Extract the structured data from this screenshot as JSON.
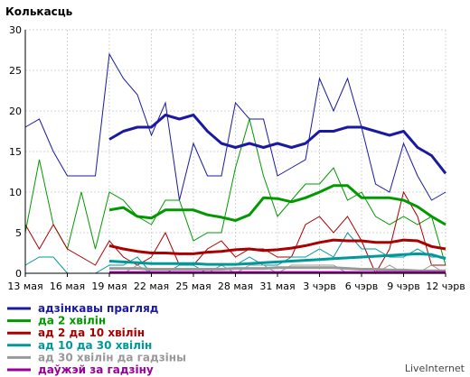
{
  "chart_data": {
    "type": "line",
    "title": "Колькасць",
    "watermark": "LiveInternet",
    "ylim": [
      0,
      30
    ],
    "yticks": [
      0,
      5,
      10,
      15,
      20,
      25,
      30
    ],
    "grid": true,
    "x_count": 31,
    "xtick_labels": [
      {
        "i": 0,
        "label": "13 мая"
      },
      {
        "i": 3,
        "label": "16 мая"
      },
      {
        "i": 6,
        "label": "19 мая"
      },
      {
        "i": 9,
        "label": "22 мая"
      },
      {
        "i": 12,
        "label": "25 мая"
      },
      {
        "i": 15,
        "label": "28 мая"
      },
      {
        "i": 18,
        "label": "31 мая"
      },
      {
        "i": 21,
        "label": "3 чэрв"
      },
      {
        "i": 24,
        "label": "6 чэрв"
      },
      {
        "i": 27,
        "label": "9 чэрв"
      },
      {
        "i": 30,
        "label": "12 чэрв"
      }
    ],
    "legend_position": "bottom-left",
    "series": [
      {
        "name": "адзінкавы прагляд",
        "color": "#1a1aa0",
        "values": [
          18,
          19,
          15,
          12,
          12,
          12,
          27,
          24,
          22,
          17,
          21,
          9,
          16,
          12,
          12,
          21,
          19,
          19,
          12,
          13,
          14,
          24,
          20,
          24,
          18,
          11,
          10,
          16,
          12,
          9,
          10
        ],
        "avg": [
          null,
          null,
          null,
          null,
          null,
          null,
          16.5,
          17.5,
          18,
          18,
          19.5,
          19,
          19.5,
          17.5,
          16,
          15.5,
          16,
          15.5,
          16,
          15.5,
          16,
          17.5,
          17.5,
          18,
          18,
          17.5,
          17,
          17.5,
          15.5,
          14.5,
          12.3
        ]
      },
      {
        "name": "да 2 хвілін",
        "color": "#009900",
        "values": [
          5,
          14,
          6,
          3,
          10,
          3,
          10,
          9,
          7,
          6,
          9,
          9,
          4,
          5,
          5,
          13,
          19,
          12,
          7,
          9,
          11,
          11,
          13,
          9,
          10,
          7,
          6,
          7,
          6,
          7,
          1
        ],
        "avg": [
          null,
          null,
          null,
          null,
          null,
          null,
          7.8,
          8.1,
          7,
          6.8,
          7.8,
          7.8,
          7.8,
          7.2,
          6.9,
          6.5,
          7.2,
          9.3,
          9.2,
          8.8,
          9.3,
          10,
          10.8,
          10.8,
          9.3,
          9.3,
          9.3,
          9,
          8.2,
          7,
          6
        ]
      },
      {
        "name": "ад 2 да 10 хвілін",
        "color": "#aa0000",
        "values": [
          6,
          3,
          6,
          3,
          2,
          1,
          4,
          2,
          1,
          2,
          5,
          1,
          1,
          3,
          4,
          2,
          3,
          3,
          2,
          2,
          6,
          7,
          5,
          7,
          4,
          0,
          3,
          10,
          7,
          1,
          1
        ],
        "avg": [
          null,
          null,
          null,
          null,
          null,
          null,
          3.4,
          3,
          2.7,
          2.5,
          2.5,
          2.4,
          2.4,
          2.6,
          2.7,
          2.9,
          3,
          2.8,
          2.9,
          3.1,
          3.4,
          3.8,
          4.1,
          4,
          4,
          3.8,
          3.8,
          4.1,
          4,
          3.3,
          3
        ]
      },
      {
        "name": "ад 10 да 30 хвілін",
        "color": "#009999",
        "values": [
          1,
          2,
          2,
          0,
          0,
          0,
          1,
          1,
          2,
          0,
          0,
          1,
          1,
          0,
          1,
          1,
          2,
          1,
          1,
          2,
          2,
          3,
          2,
          5,
          3,
          3,
          2,
          2,
          3,
          2,
          2
        ],
        "avg": [
          null,
          null,
          null,
          null,
          null,
          null,
          1.5,
          1.4,
          1.3,
          1.2,
          1.2,
          1.2,
          1.2,
          1.1,
          1.1,
          1.1,
          1.2,
          1.3,
          1.4,
          1.5,
          1.6,
          1.7,
          1.8,
          1.9,
          2,
          2.1,
          2.2,
          2.3,
          2.4,
          2.3,
          1.8
        ]
      },
      {
        "name": "ад 30 хвілін да гадзіны",
        "color": "#999999",
        "values": [
          0,
          0,
          0,
          0,
          0,
          0,
          0,
          0,
          1,
          0,
          0,
          0,
          0,
          0,
          1,
          0,
          1,
          1,
          0,
          1,
          1,
          1,
          1,
          0,
          0,
          0,
          1,
          0,
          0,
          1,
          0
        ],
        "avg": [
          null,
          null,
          null,
          null,
          null,
          null,
          0.6,
          0.6,
          0.6,
          0.5,
          0.5,
          0.5,
          0.5,
          0.5,
          0.5,
          0.6,
          0.6,
          0.6,
          0.7,
          0.7,
          0.7,
          0.7,
          0.7,
          0.6,
          0.5,
          0.5,
          0.4,
          0.4,
          0.3,
          0.3,
          0.3
        ]
      },
      {
        "name": "даўжэй за гадзіну",
        "color": "#990099",
        "values": [
          0,
          0,
          0,
          0,
          0,
          0,
          0,
          0,
          0,
          0,
          0,
          0,
          0,
          0,
          0,
          0,
          0,
          0,
          0,
          0,
          0,
          0,
          0,
          0,
          0,
          0,
          0,
          0,
          0,
          0,
          0
        ],
        "avg": [
          null,
          null,
          null,
          null,
          null,
          null,
          0.1,
          0.1,
          0.1,
          0.1,
          0.1,
          0.1,
          0.1,
          0.1,
          0.1,
          0.1,
          0.1,
          0.1,
          0.1,
          0.1,
          0.1,
          0.1,
          0.1,
          0.1,
          0.1,
          0.1,
          0.1,
          0.1,
          0.1,
          0.1,
          0.1
        ]
      }
    ]
  }
}
